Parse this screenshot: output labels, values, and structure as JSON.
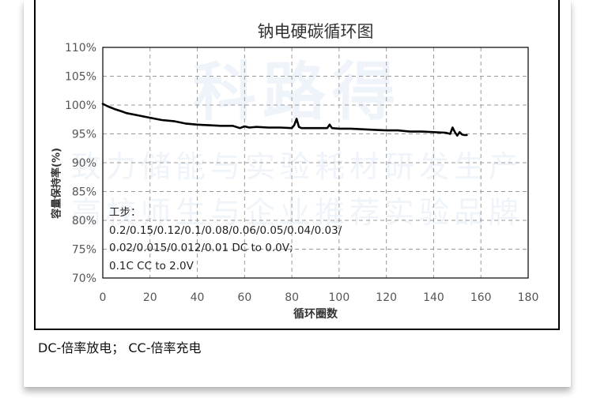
{
  "watermark": {
    "brand": "科路得",
    "line1": "致力储能与实验耗材研发生产",
    "line2": "高校师生与企业推荐实验品牌"
  },
  "chart_data": {
    "type": "line",
    "title": "钠电硬碳循环图",
    "xlabel": "循环圈数",
    "ylabel": "容量保持率(%)",
    "xlim": [
      0,
      180
    ],
    "ylim": [
      70,
      110
    ],
    "x_ticks": [
      "0",
      "20",
      "40",
      "60",
      "80",
      "100",
      "120",
      "140",
      "160",
      "180"
    ],
    "y_ticks": [
      "70%",
      "75%",
      "80%",
      "85%",
      "90%",
      "95%",
      "100%",
      "105%",
      "110%"
    ],
    "grid": "dashed",
    "line_color": "#000000",
    "series": [
      {
        "x": [
          0,
          2,
          5,
          8,
          10,
          15,
          20,
          25,
          30,
          35,
          40,
          45,
          50,
          55,
          58,
          60,
          62,
          65,
          70,
          75,
          80,
          81,
          82,
          83,
          84,
          85,
          90,
          95,
          96,
          97,
          100,
          105,
          110,
          115,
          120,
          125,
          130,
          135,
          140,
          145,
          147,
          148,
          149,
          150,
          151,
          152,
          153,
          154
        ],
        "y": [
          100.2,
          99.8,
          99.3,
          98.9,
          98.6,
          98.2,
          97.8,
          97.4,
          97.2,
          96.8,
          96.6,
          96.5,
          96.4,
          96.4,
          96.0,
          96.3,
          96.1,
          96.2,
          96.1,
          96.1,
          96.0,
          96.5,
          97.6,
          96.2,
          96.0,
          96.0,
          96.0,
          96.0,
          96.6,
          96.0,
          95.9,
          95.9,
          95.8,
          95.7,
          95.6,
          95.6,
          95.4,
          95.4,
          95.3,
          95.2,
          95.0,
          96.1,
          95.3,
          94.7,
          95.3,
          94.9,
          94.8,
          94.8
        ]
      }
    ]
  },
  "annotation": {
    "line1": "工步：",
    "line2": "0.2/0.15/0.12/0.1/0.08/0.06/0.05/0.04/0.03/",
    "line3": "0.02/0.015/0.012/0.01 DC to 0.0V;",
    "line4": "0.1C CC to 2.0V"
  },
  "footnote": "DC-倍率放电；  CC-倍率充电"
}
